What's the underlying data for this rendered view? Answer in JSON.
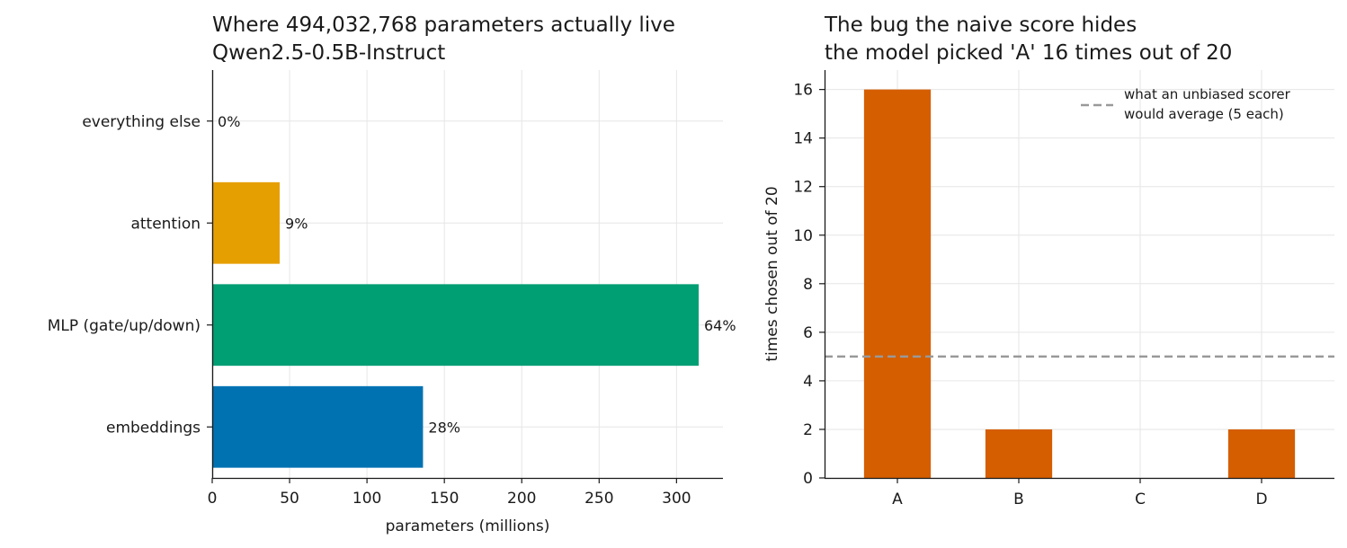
{
  "chart_data": [
    {
      "type": "bar",
      "orientation": "horizontal",
      "title_line1": "Where 494,032,768 parameters actually live",
      "title_line2": "Qwen2.5-0.5B-Instruct",
      "xlabel": "parameters (millions)",
      "ylabel": "",
      "xlim": [
        0,
        330
      ],
      "xticks": [
        0,
        50,
        100,
        150,
        200,
        250,
        300
      ],
      "grid": true,
      "categories": [
        "embeddings",
        "MLP (gate/up/down)",
        "attention",
        "everything else"
      ],
      "values": [
        136.2,
        314.3,
        43.6,
        0.03
      ],
      "labels": [
        "28%",
        "64%",
        "9%",
        "0%"
      ],
      "colors": [
        "#0072b2",
        "#009e73",
        "#e69f00",
        "#999999"
      ]
    },
    {
      "type": "bar",
      "title_line1": "The bug the naive score hides",
      "title_line2": "the model picked 'A' 16 times out of 20",
      "xlabel": "",
      "ylabel": "times chosen out of 20",
      "ylim": [
        0,
        16.8
      ],
      "yticks": [
        0,
        2,
        4,
        6,
        8,
        10,
        12,
        14,
        16
      ],
      "grid": true,
      "categories": [
        "A",
        "B",
        "C",
        "D"
      ],
      "values": [
        16,
        2,
        0,
        2
      ],
      "color": "#d55e00",
      "reference_line": {
        "value": 5,
        "label_line1": "what an unbiased scorer",
        "label_line2": "would average (5 each)",
        "color": "#999999",
        "style": "dashed"
      },
      "legend_position": "top-right"
    }
  ]
}
